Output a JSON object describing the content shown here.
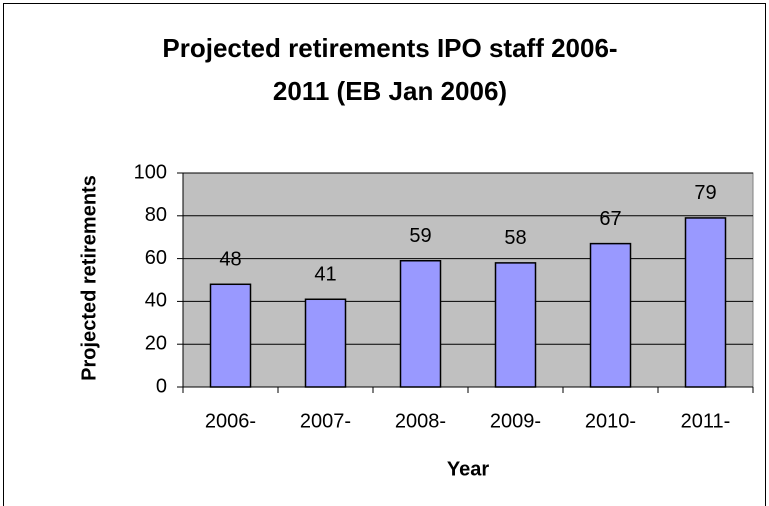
{
  "chart_data": {
    "type": "bar",
    "title": [
      "Projected retirements IPO staff 2006-",
      "2011 (EB Jan 2006)"
    ],
    "xlabel": "Year",
    "ylabel": "Projected retirements",
    "categories": [
      "2006-",
      "2007-",
      "2008-",
      "2009-",
      "2010-",
      "2011-"
    ],
    "values": [
      48,
      41,
      59,
      58,
      67,
      79
    ],
    "color": "#9999ff",
    "ylim": [
      0,
      100
    ],
    "yticks": [
      0,
      20,
      40,
      60,
      80,
      100
    ],
    "grid": true
  }
}
